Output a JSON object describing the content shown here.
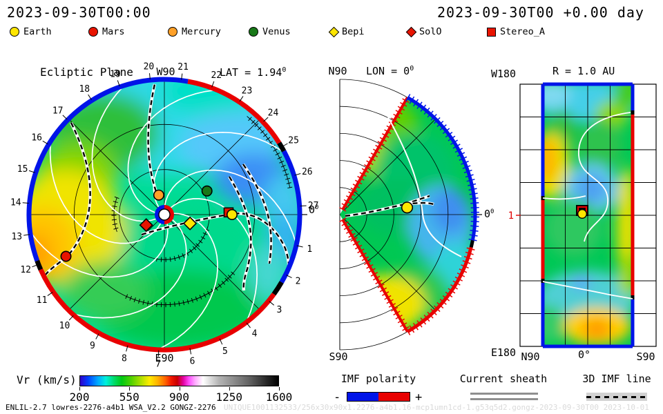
{
  "header": {
    "left_title": "2023-09-30T00:00",
    "right_title": "2023-09-30T00 +0.00 day"
  },
  "legend": {
    "items": [
      {
        "label": "Earth",
        "marker": "circle",
        "color": "#ffe600"
      },
      {
        "label": "Mars",
        "marker": "circle",
        "color": "#e81400"
      },
      {
        "label": "Mercury",
        "marker": "circle",
        "color": "#ffa028"
      },
      {
        "label": "Venus",
        "marker": "circle",
        "color": "#187818"
      },
      {
        "label": "Bepi",
        "marker": "diamond",
        "color": "#ffe600"
      },
      {
        "label": "SolO",
        "marker": "diamond",
        "color": "#e81400"
      },
      {
        "label": "Stereo_A",
        "marker": "square",
        "color": "#e81400"
      }
    ]
  },
  "chart_data": [
    {
      "type": "heatmap",
      "name": "ecliptic-plane",
      "title": "Ecliptic Plane",
      "lat_annotation": "LAT = 1.94",
      "lat_sup": "0",
      "top_label": "W90",
      "bottom_label": "E90",
      "right_tick_label": "0",
      "right_tick_sup": "0",
      "radius_au": 2.0,
      "quantity": "Vr",
      "day_markers": [
        1,
        2,
        3,
        4,
        5,
        6,
        7,
        8,
        9,
        10,
        11,
        12,
        13,
        14,
        15,
        16,
        17,
        18,
        19,
        20,
        21,
        22,
        23,
        24,
        25,
        26,
        27
      ],
      "planets": [
        {
          "name": "Mercury",
          "r_au": 0.3,
          "angle_deg": 106,
          "marker": "circle",
          "color": "#ffa028"
        },
        {
          "name": "Venus",
          "r_au": 0.72,
          "angle_deg": 29,
          "marker": "circle",
          "color": "#187818"
        },
        {
          "name": "Stereo_A",
          "r_au": 0.95,
          "angle_deg": 2,
          "marker": "square",
          "color": "#e81400"
        },
        {
          "name": "Earth",
          "r_au": 1.0,
          "angle_deg": 0,
          "marker": "circle",
          "color": "#ffe600"
        },
        {
          "name": "Mars",
          "r_au": 1.58,
          "angle_deg": 203,
          "marker": "circle",
          "color": "#e81400"
        },
        {
          "name": "Bepi",
          "r_au": 0.4,
          "angle_deg": -19,
          "marker": "diamond",
          "color": "#ffe600"
        },
        {
          "name": "SolO",
          "r_au": 0.31,
          "angle_deg": 210,
          "marker": "diamond",
          "color": "#e81400"
        }
      ],
      "imf_polarity_colors": {
        "negative": "#0014e8",
        "positive": "#e80000"
      }
    },
    {
      "type": "heatmap",
      "name": "meridional-plane",
      "top_label": "N90",
      "title": "LON = 0",
      "title_sup": "0",
      "bottom_label": "S90",
      "right_tick_label": "0",
      "right_tick_sup": "0",
      "lat_half_extent_deg": 60,
      "earth": {
        "r_au": 1.0,
        "angle_deg": 6
      }
    },
    {
      "type": "heatmap",
      "name": "radial-surface",
      "title": "R = 1.0 AU",
      "top_left_label": "W180",
      "bottom_left_label": "E180",
      "x_tick_labels": [
        "N90",
        "0°",
        "S90"
      ],
      "left_tick_label": "1",
      "earth": {
        "lat_deg": 11,
        "lon_deg": 0
      }
    },
    {
      "type": "colorbar",
      "label": "Vr (km/s)",
      "tick_labels": [
        "200",
        "550",
        "900",
        "1250",
        "1600"
      ],
      "range": [
        200,
        1600
      ],
      "gradient_stops": [
        [
          0,
          "#3200c8"
        ],
        [
          4,
          "#0041ff"
        ],
        [
          9,
          "#00aaff"
        ],
        [
          13,
          "#00f0dc"
        ],
        [
          17,
          "#00dc6e"
        ],
        [
          21,
          "#00c814"
        ],
        [
          26,
          "#55d200"
        ],
        [
          31,
          "#b4e100"
        ],
        [
          35,
          "#ffeb00"
        ],
        [
          39,
          "#ffb400"
        ],
        [
          43,
          "#ff6400"
        ],
        [
          46,
          "#f01800"
        ],
        [
          49,
          "#c80000"
        ],
        [
          52,
          "#e100a0"
        ],
        [
          55,
          "#ff50ff"
        ],
        [
          58,
          "#ffaaff"
        ],
        [
          62,
          "#ffffff"
        ],
        [
          70,
          "#b4b4b4"
        ],
        [
          85,
          "#646464"
        ],
        [
          100,
          "#000000"
        ]
      ]
    }
  ],
  "bottom_legend": {
    "imf": {
      "title": "IMF polarity",
      "minus_label": "-",
      "plus_label": "+",
      "negative_color": "#0014e8",
      "positive_color": "#e80000"
    },
    "current_sheath": {
      "title": "Current sheath"
    },
    "imf_line_3d": {
      "title": "3D IMF line"
    }
  },
  "footer": {
    "model_info": "ENLIL-2.7 lowres-2276-a4b1 WSA_V2.2 GONGZ-2276",
    "watermark": "UNIQUE1001132533/256x30x90x1.2276-a4b1.16-mcp1umn1cd-1.g53q5d2.gongz-2023-09-30T00  2023-10-01"
  }
}
